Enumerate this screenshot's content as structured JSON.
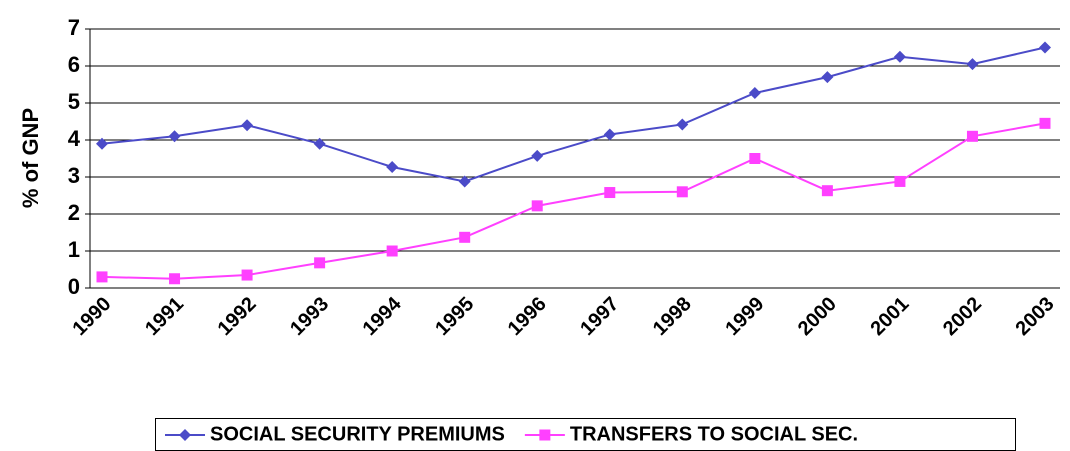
{
  "chart_data": {
    "type": "line",
    "ylabel": "% of GNP",
    "categories": [
      "1990",
      "1991",
      "1992",
      "1993",
      "1994",
      "1995",
      "1996",
      "1997",
      "1998",
      "1999",
      "2000",
      "2001",
      "2002",
      "2003"
    ],
    "series": [
      {
        "name": "SOCIAL SECURITY PREMIUMS",
        "color": "#4b4bc8",
        "marker": "diamond",
        "values": [
          3.9,
          4.1,
          4.4,
          3.9,
          3.27,
          2.88,
          3.57,
          4.15,
          4.42,
          5.27,
          5.7,
          6.25,
          6.05,
          6.5
        ]
      },
      {
        "name": "TRANSFERS TO SOCIAL SEC.",
        "color": "#ff40ff",
        "marker": "square",
        "values": [
          0.3,
          0.25,
          0.35,
          0.68,
          1.0,
          1.37,
          2.22,
          2.58,
          2.6,
          3.5,
          2.63,
          2.88,
          4.1,
          4.45
        ]
      }
    ],
    "ylim": [
      0,
      7
    ],
    "yticks": [
      0,
      1,
      2,
      3,
      4,
      5,
      6,
      7
    ],
    "grid": true,
    "legend": "bottom"
  }
}
